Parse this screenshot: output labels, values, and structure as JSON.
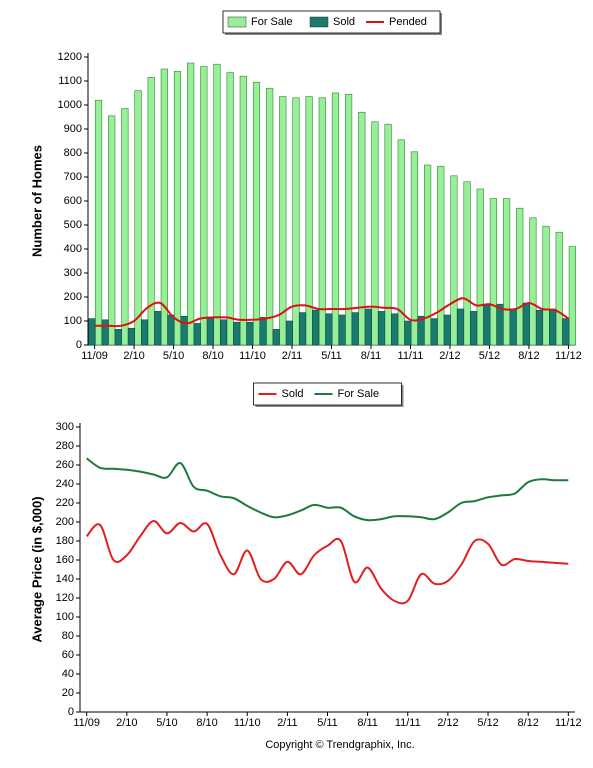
{
  "chart_data": [
    {
      "type": "bar",
      "ylabel": "Number of Homes",
      "legend": "top",
      "grid": false,
      "categories": [
        "11/09",
        null,
        null,
        "2/10",
        null,
        null,
        "5/10",
        null,
        null,
        "8/10",
        null,
        null,
        "11/10",
        null,
        null,
        "2/11",
        null,
        null,
        "5/11",
        null,
        null,
        "8/11",
        null,
        null,
        "11/11",
        null,
        null,
        "2/12",
        null,
        null,
        "5/12",
        null,
        null,
        "8/12",
        null,
        null,
        "11/12"
      ],
      "ylim": [
        0,
        1200
      ],
      "yticks": [
        0,
        100,
        200,
        300,
        400,
        500,
        600,
        700,
        800,
        900,
        1000,
        1100,
        1200
      ],
      "series": [
        {
          "name": "For Sale",
          "type": "bar",
          "color": "#99ee99",
          "values": [
            1020,
            955,
            985,
            1060,
            1115,
            1150,
            1140,
            1175,
            1160,
            1170,
            1135,
            1120,
            1095,
            1070,
            1035,
            1030,
            1035,
            1030,
            1050,
            1045,
            970,
            930,
            920,
            855,
            805,
            750,
            745,
            705,
            680,
            650,
            610,
            610,
            570,
            530,
            495,
            470,
            410
          ]
        },
        {
          "name": "Sold",
          "type": "bar",
          "color": "#1a7a6e",
          "values": [
            110,
            105,
            65,
            70,
            105,
            140,
            125,
            120,
            90,
            110,
            105,
            95,
            95,
            115,
            65,
            100,
            135,
            145,
            130,
            125,
            135,
            150,
            140,
            130,
            100,
            120,
            110,
            125,
            150,
            140,
            165,
            170,
            150,
            175,
            145,
            150,
            110
          ]
        },
        {
          "name": "Pended",
          "type": "line",
          "color": "#dd1111",
          "values": [
            80,
            80,
            80,
            100,
            155,
            175,
            115,
            90,
            110,
            115,
            115,
            105,
            105,
            110,
            125,
            160,
            165,
            150,
            150,
            150,
            155,
            160,
            155,
            150,
            105,
            110,
            135,
            170,
            195,
            165,
            170,
            150,
            150,
            175,
            150,
            145,
            110
          ]
        }
      ]
    },
    {
      "type": "line",
      "ylabel": "Average Price (in $,000)",
      "legend": "top",
      "grid": false,
      "categories": [
        "11/09",
        null,
        null,
        "2/10",
        null,
        null,
        "5/10",
        null,
        null,
        "8/10",
        null,
        null,
        "11/10",
        null,
        null,
        "2/11",
        null,
        null,
        "5/11",
        null,
        null,
        "8/11",
        null,
        null,
        "11/11",
        null,
        null,
        "2/12",
        null,
        null,
        "5/12",
        null,
        null,
        "8/12",
        null,
        null,
        "11/12"
      ],
      "ylim": [
        0,
        300
      ],
      "yticks": [
        0,
        20,
        40,
        60,
        80,
        100,
        120,
        140,
        160,
        180,
        200,
        220,
        240,
        260,
        280,
        300
      ],
      "series": [
        {
          "name": "Sold",
          "type": "line",
          "color": "#e02020",
          "values": [
            185,
            197,
            160,
            165,
            185,
            201,
            188,
            199,
            190,
            198,
            165,
            145,
            170,
            140,
            140,
            158,
            145,
            165,
            175,
            180,
            137,
            152,
            130,
            117,
            117,
            145,
            135,
            138,
            155,
            180,
            177,
            155,
            161,
            159,
            158,
            157,
            156
          ]
        },
        {
          "name": "For Sale",
          "type": "line",
          "color": "#1e7a3a",
          "values": [
            267,
            257,
            256,
            255,
            253,
            250,
            247,
            262,
            237,
            233,
            227,
            225,
            217,
            210,
            205,
            207,
            212,
            218,
            215,
            215,
            206,
            202,
            203,
            206,
            206,
            205,
            203,
            210,
            220,
            222,
            226,
            228,
            230,
            242,
            245,
            244,
            244
          ]
        }
      ]
    }
  ],
  "footer": "Copyright © Trendgraphix, Inc."
}
